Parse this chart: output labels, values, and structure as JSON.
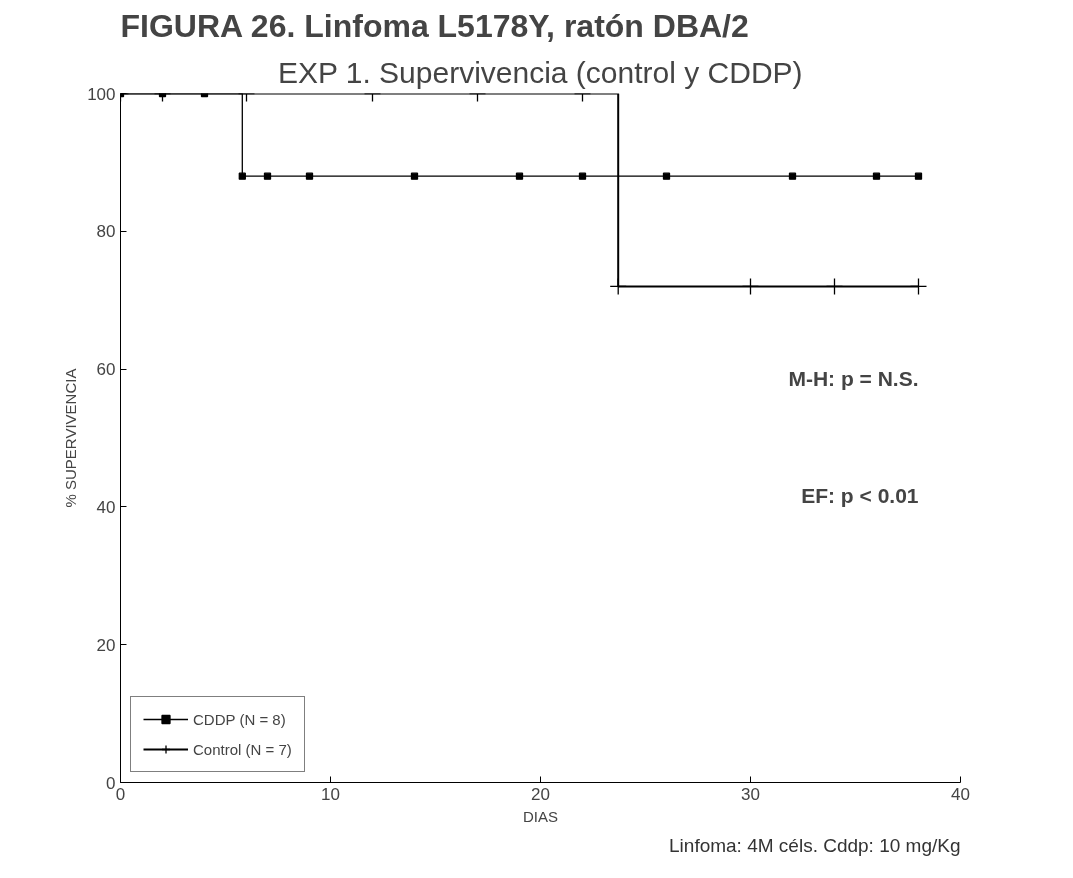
{
  "chart_data": {
    "type": "step",
    "title": "FIGURA 26. Linfoma L5178Y, ratón DBA/2",
    "subtitle": "EXP 1. Supervivencia (control y CDDP)",
    "xlabel": "DIAS",
    "ylabel": "% SUPERVIVENCIA",
    "xlim": [
      0,
      40
    ],
    "xticks": [
      0,
      10,
      20,
      30,
      40
    ],
    "ylim": [
      0,
      100
    ],
    "yticks": [
      0,
      20,
      40,
      60,
      80,
      100
    ],
    "grid": false,
    "legend": "bottom left",
    "series": [
      {
        "name": "CDDP (N = 8)",
        "color": "#000000",
        "marker": "square",
        "x": [
          0,
          2,
          4,
          5.8,
          7,
          9,
          14,
          19,
          22,
          26,
          32,
          36,
          38
        ],
        "values": [
          100,
          100,
          100,
          88,
          88,
          88,
          88,
          88,
          88,
          88,
          88,
          88,
          88
        ]
      },
      {
        "name": "Control (N = 7)",
        "color": "#000000",
        "marker": "cross",
        "x": [
          0,
          2,
          6,
          12,
          17,
          22,
          23.7,
          30,
          34,
          38
        ],
        "values": [
          100,
          100,
          100,
          100,
          100,
          100,
          72,
          72,
          72,
          72
        ]
      }
    ],
    "annotations": [
      "M-H: p = N.S.",
      "EF: p < 0.01",
      "Linfoma: 4M céls. Cddp: 10 mg/Kg"
    ]
  }
}
